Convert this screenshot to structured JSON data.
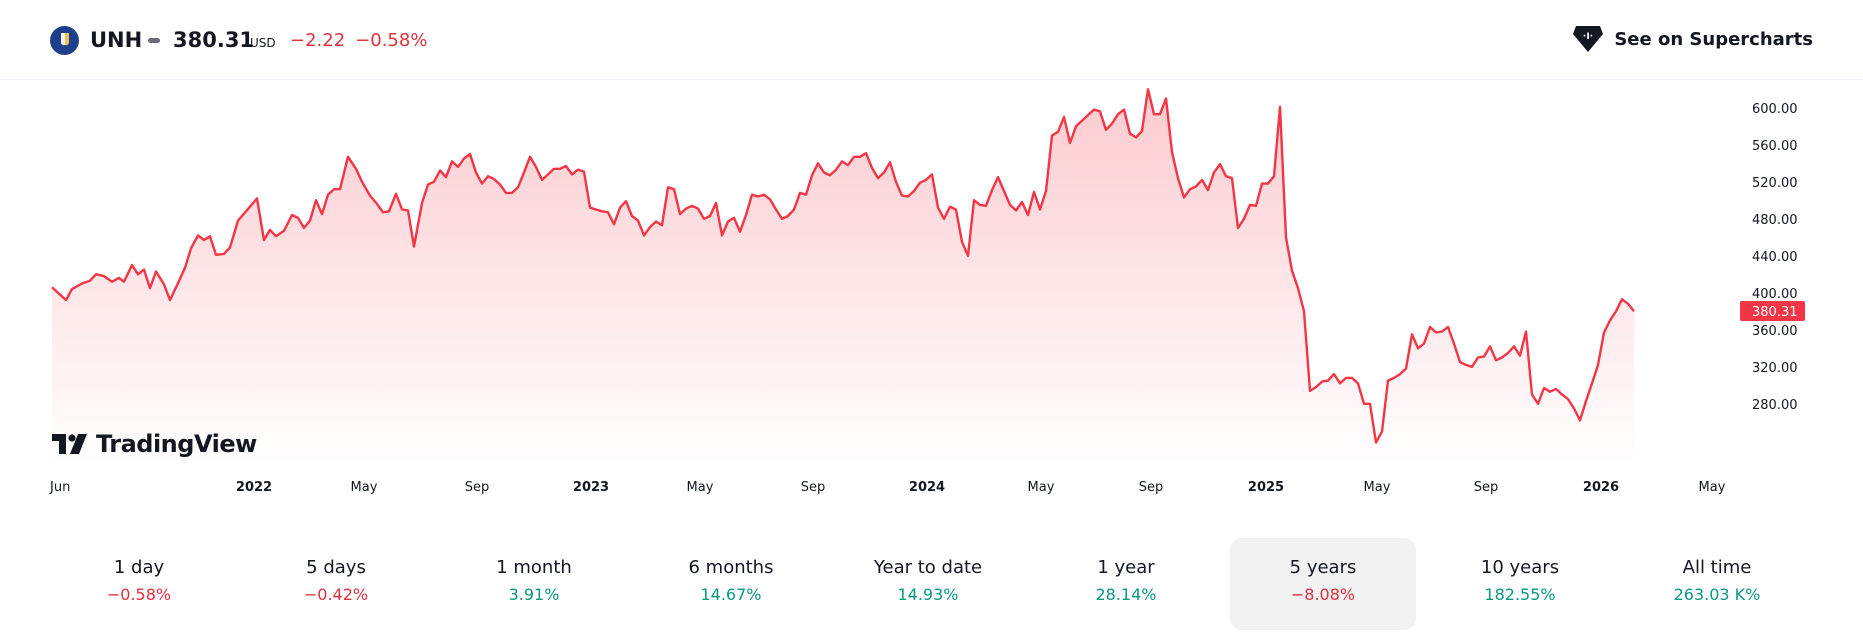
{
  "header": {
    "ticker": "UNH",
    "price": "380.31",
    "currency": "USD",
    "change_abs": "−2.22",
    "change_pct": "−0.58%",
    "cta_label": "See on Supercharts",
    "change_color": "#e0313e"
  },
  "brand": {
    "name": "TradingView"
  },
  "periods": [
    {
      "label": "1 day",
      "value": "−0.58%",
      "trend": "neg"
    },
    {
      "label": "5 days",
      "value": "−0.42%",
      "trend": "neg"
    },
    {
      "label": "1 month",
      "value": "3.91%",
      "trend": "pos"
    },
    {
      "label": "6 months",
      "value": "14.67%",
      "trend": "pos"
    },
    {
      "label": "Year to date",
      "value": "14.93%",
      "trend": "pos"
    },
    {
      "label": "1 year",
      "value": "28.14%",
      "trend": "pos"
    },
    {
      "label": "5 years",
      "value": "−8.08%",
      "trend": "neg",
      "selected": true
    },
    {
      "label": "10 years",
      "value": "182.55%",
      "trend": "pos"
    },
    {
      "label": "All time",
      "value": "263.03 K%",
      "trend": "pos"
    }
  ],
  "chart_data": {
    "type": "area",
    "line_color": "#f23645",
    "fill_color": "#f23645",
    "ylim": [
      230,
      630
    ],
    "yticks": [
      "280.00",
      "320.00",
      "360.00",
      "400.00",
      "440.00",
      "480.00",
      "520.00",
      "560.00",
      "600.00"
    ],
    "last_value_label": "380.31",
    "last_value": 380.31,
    "xlim": [
      0,
      1691
    ],
    "xticks": [
      {
        "label": "Jun",
        "x": 10,
        "bold": false
      },
      {
        "label": "2022",
        "x": 202,
        "bold": true
      },
      {
        "label": "May",
        "x": 312,
        "bold": false
      },
      {
        "label": "Sep",
        "x": 425,
        "bold": false
      },
      {
        "label": "2023",
        "x": 539,
        "bold": true
      },
      {
        "label": "May",
        "x": 648,
        "bold": false
      },
      {
        "label": "Sep",
        "x": 761,
        "bold": false
      },
      {
        "label": "2024",
        "x": 875,
        "bold": true
      },
      {
        "label": "May",
        "x": 989,
        "bold": false
      },
      {
        "label": "Sep",
        "x": 1099,
        "bold": false
      },
      {
        "label": "2025",
        "x": 1214,
        "bold": true
      },
      {
        "label": "May",
        "x": 1325,
        "bold": false
      },
      {
        "label": "Sep",
        "x": 1434,
        "bold": false
      },
      {
        "label": "2026",
        "x": 1549,
        "bold": true
      },
      {
        "label": "May",
        "x": 1660,
        "bold": false
      }
    ],
    "series": [
      {
        "points": [
          [
            0,
            406
          ],
          [
            14,
            392
          ],
          [
            20,
            404
          ],
          [
            30,
            410
          ],
          [
            38,
            413
          ],
          [
            44,
            420
          ],
          [
            52,
            418
          ],
          [
            60,
            412
          ],
          [
            67,
            416
          ],
          [
            72,
            412
          ],
          [
            80,
            430
          ],
          [
            86,
            420
          ],
          [
            92,
            425
          ],
          [
            98,
            405
          ],
          [
            104,
            423
          ],
          [
            112,
            409
          ],
          [
            118,
            392
          ],
          [
            125,
            408
          ],
          [
            133,
            427
          ],
          [
            139,
            448
          ],
          [
            146,
            462
          ],
          [
            152,
            457
          ],
          [
            158,
            461
          ],
          [
            164,
            441
          ],
          [
            172,
            442
          ],
          [
            178,
            449
          ],
          [
            186,
            478
          ],
          [
            194,
            488
          ],
          [
            205,
            502
          ],
          [
            212,
            457
          ],
          [
            218,
            468
          ],
          [
            224,
            461
          ],
          [
            232,
            467
          ],
          [
            240,
            484
          ],
          [
            246,
            481
          ],
          [
            252,
            470
          ],
          [
            258,
            478
          ],
          [
            264,
            500
          ],
          [
            270,
            485
          ],
          [
            276,
            506
          ],
          [
            282,
            512
          ],
          [
            288,
            512
          ],
          [
            296,
            547
          ],
          [
            304,
            534
          ],
          [
            310,
            520
          ],
          [
            318,
            505
          ],
          [
            325,
            496
          ],
          [
            331,
            487
          ],
          [
            337,
            488
          ],
          [
            344,
            507
          ],
          [
            350,
            490
          ],
          [
            356,
            489
          ],
          [
            362,
            450
          ],
          [
            370,
            497
          ],
          [
            376,
            517
          ],
          [
            382,
            520
          ],
          [
            388,
            532
          ],
          [
            394,
            525
          ],
          [
            400,
            542
          ],
          [
            406,
            536
          ],
          [
            412,
            545
          ],
          [
            418,
            550
          ],
          [
            424,
            530
          ],
          [
            430,
            518
          ],
          [
            436,
            526
          ],
          [
            442,
            523
          ],
          [
            448,
            517
          ],
          [
            454,
            508
          ],
          [
            460,
            508
          ],
          [
            466,
            514
          ],
          [
            472,
            530
          ],
          [
            478,
            547
          ],
          [
            484,
            536
          ],
          [
            490,
            522
          ],
          [
            496,
            528
          ],
          [
            502,
            534
          ],
          [
            508,
            534
          ],
          [
            514,
            537
          ],
          [
            520,
            528
          ],
          [
            526,
            533
          ],
          [
            532,
            531
          ],
          [
            538,
            492
          ],
          [
            544,
            490
          ],
          [
            550,
            488
          ],
          [
            556,
            487
          ],
          [
            562,
            474
          ],
          [
            568,
            492
          ],
          [
            574,
            499
          ],
          [
            580,
            483
          ],
          [
            586,
            478
          ],
          [
            592,
            462
          ],
          [
            598,
            471
          ],
          [
            604,
            477
          ],
          [
            610,
            473
          ],
          [
            616,
            514
          ],
          [
            622,
            512
          ],
          [
            628,
            485
          ],
          [
            634,
            491
          ],
          [
            640,
            494
          ],
          [
            646,
            491
          ],
          [
            652,
            480
          ],
          [
            658,
            483
          ],
          [
            664,
            497
          ],
          [
            670,
            462
          ],
          [
            676,
            477
          ],
          [
            682,
            481
          ],
          [
            688,
            466
          ],
          [
            694,
            484
          ],
          [
            700,
            506
          ],
          [
            706,
            504
          ],
          [
            712,
            506
          ],
          [
            718,
            501
          ],
          [
            724,
            490
          ],
          [
            730,
            480
          ],
          [
            736,
            483
          ],
          [
            742,
            490
          ],
          [
            748,
            508
          ],
          [
            754,
            506
          ],
          [
            760,
            527
          ],
          [
            766,
            540
          ],
          [
            772,
            530
          ],
          [
            778,
            527
          ],
          [
            784,
            533
          ],
          [
            790,
            542
          ],
          [
            796,
            538
          ],
          [
            802,
            547
          ],
          [
            808,
            547
          ],
          [
            814,
            551
          ],
          [
            820,
            535
          ],
          [
            826,
            524
          ],
          [
            832,
            530
          ],
          [
            838,
            541
          ],
          [
            844,
            520
          ],
          [
            850,
            505
          ],
          [
            856,
            504
          ],
          [
            862,
            510
          ],
          [
            868,
            519
          ],
          [
            874,
            522
          ],
          [
            880,
            528
          ],
          [
            886,
            492
          ],
          [
            892,
            480
          ],
          [
            898,
            493
          ],
          [
            904,
            490
          ],
          [
            910,
            455
          ],
          [
            916,
            440
          ],
          [
            922,
            500
          ],
          [
            928,
            495
          ],
          [
            934,
            494
          ],
          [
            940,
            511
          ],
          [
            946,
            525
          ],
          [
            952,
            510
          ],
          [
            958,
            495
          ],
          [
            964,
            489
          ],
          [
            970,
            498
          ],
          [
            976,
            484
          ],
          [
            982,
            509
          ],
          [
            988,
            490
          ],
          [
            994,
            510
          ],
          [
            1000,
            570
          ],
          [
            1006,
            574
          ],
          [
            1012,
            590
          ],
          [
            1018,
            562
          ],
          [
            1024,
            580
          ],
          [
            1030,
            586
          ],
          [
            1036,
            592
          ],
          [
            1042,
            598
          ],
          [
            1048,
            596
          ],
          [
            1054,
            576
          ],
          [
            1060,
            583
          ],
          [
            1066,
            593
          ],
          [
            1072,
            598
          ],
          [
            1078,
            572
          ],
          [
            1084,
            568
          ],
          [
            1090,
            575
          ],
          [
            1096,
            620
          ],
          [
            1102,
            593
          ],
          [
            1108,
            593
          ],
          [
            1114,
            610
          ],
          [
            1120,
            552
          ],
          [
            1126,
            524
          ],
          [
            1132,
            503
          ],
          [
            1138,
            512
          ],
          [
            1144,
            515
          ],
          [
            1150,
            522
          ],
          [
            1156,
            511
          ],
          [
            1162,
            530
          ],
          [
            1168,
            539
          ],
          [
            1174,
            526
          ],
          [
            1180,
            524
          ],
          [
            1186,
            470
          ],
          [
            1192,
            480
          ],
          [
            1198,
            495
          ],
          [
            1204,
            494
          ],
          [
            1210,
            518
          ],
          [
            1216,
            518
          ],
          [
            1222,
            526
          ],
          [
            1228,
            601
          ],
          [
            1234,
            460
          ],
          [
            1240,
            424
          ],
          [
            1246,
            405
          ],
          [
            1252,
            380
          ],
          [
            1258,
            294
          ],
          [
            1264,
            298
          ],
          [
            1270,
            304
          ],
          [
            1276,
            305
          ],
          [
            1282,
            312
          ],
          [
            1288,
            302
          ],
          [
            1294,
            308
          ],
          [
            1300,
            308
          ],
          [
            1306,
            302
          ],
          [
            1312,
            280
          ],
          [
            1318,
            280
          ],
          [
            1324,
            238
          ],
          [
            1330,
            250
          ],
          [
            1336,
            305
          ],
          [
            1342,
            308
          ],
          [
            1348,
            312
          ],
          [
            1354,
            318
          ],
          [
            1360,
            355
          ],
          [
            1366,
            340
          ],
          [
            1372,
            345
          ],
          [
            1378,
            363
          ],
          [
            1384,
            357
          ],
          [
            1390,
            358
          ],
          [
            1396,
            363
          ],
          [
            1402,
            345
          ],
          [
            1408,
            325
          ],
          [
            1414,
            322
          ],
          [
            1420,
            320
          ],
          [
            1426,
            330
          ],
          [
            1432,
            331
          ],
          [
            1438,
            342
          ],
          [
            1444,
            327
          ],
          [
            1450,
            330
          ],
          [
            1456,
            335
          ],
          [
            1462,
            342
          ],
          [
            1468,
            332
          ],
          [
            1474,
            358
          ],
          [
            1480,
            290
          ],
          [
            1486,
            280
          ],
          [
            1492,
            297
          ],
          [
            1498,
            293
          ],
          [
            1504,
            296
          ],
          [
            1510,
            290
          ],
          [
            1516,
            285
          ],
          [
            1522,
            275
          ],
          [
            1528,
            262
          ],
          [
            1534,
            283
          ],
          [
            1540,
            302
          ],
          [
            1546,
            322
          ],
          [
            1552,
            357
          ],
          [
            1558,
            370
          ],
          [
            1564,
            380
          ],
          [
            1570,
            393
          ],
          [
            1576,
            388
          ],
          [
            1582,
            380
          ]
        ]
      }
    ]
  }
}
